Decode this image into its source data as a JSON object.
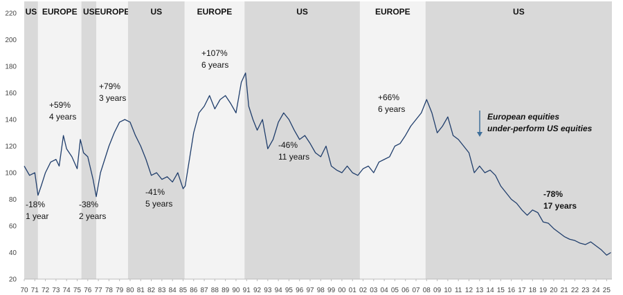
{
  "chart_data": {
    "type": "line",
    "x": [
      1970,
      1970.5,
      1971,
      1971.3,
      1971.6,
      1972,
      1972.5,
      1973,
      1973.3,
      1973.7,
      1974,
      1974.5,
      1975,
      1975.3,
      1975.6,
      1976,
      1976.5,
      1976.8,
      1977.2,
      1977.6,
      1978,
      1978.5,
      1979,
      1979.5,
      1980,
      1980.5,
      1981,
      1981.5,
      1982,
      1982.5,
      1983,
      1983.5,
      1984,
      1984.5,
      1985,
      1985.2,
      1985.6,
      1986,
      1986.5,
      1987,
      1987.5,
      1988,
      1988.5,
      1989,
      1989.5,
      1990,
      1990.5,
      1990.9,
      1991.2,
      1991.6,
      1992,
      1992.5,
      1993,
      1993.5,
      1994,
      1994.5,
      1995,
      1995.5,
      1996,
      1996.5,
      1997,
      1997.5,
      1998,
      1998.5,
      1999,
      1999.5,
      2000,
      2000.5,
      2001,
      2001.5,
      2002,
      2002.5,
      2003,
      2003.5,
      2004,
      2004.5,
      2005,
      2005.5,
      2006,
      2006.5,
      2007,
      2007.5,
      2008,
      2008.5,
      2009,
      2009.5,
      2010,
      2010.5,
      2011,
      2011.5,
      2012,
      2012.5,
      2013,
      2013.5,
      2014,
      2014.5,
      2015,
      2015.5,
      2016,
      2016.5,
      2017,
      2017.5,
      2018,
      2018.5,
      2019,
      2019.5,
      2020,
      2020.5,
      2021,
      2021.5,
      2022,
      2022.5,
      2023,
      2023.5,
      2024,
      2024.5,
      2025,
      2025.4
    ],
    "series": [
      {
        "color": "#1f3d6b",
        "values": [
          105,
          98,
          100,
          83,
          90,
          100,
          108,
          110,
          105,
          128,
          118,
          112,
          103,
          125,
          115,
          112,
          95,
          82,
          100,
          110,
          120,
          130,
          138,
          140,
          138,
          128,
          120,
          110,
          98,
          100,
          95,
          97,
          93,
          100,
          88,
          90,
          110,
          130,
          145,
          150,
          158,
          148,
          155,
          158,
          152,
          145,
          168,
          175,
          150,
          140,
          132,
          140,
          118,
          125,
          138,
          145,
          140,
          132,
          125,
          128,
          122,
          115,
          112,
          120,
          105,
          102,
          100,
          105,
          100,
          98,
          103,
          105,
          100,
          108,
          110,
          112,
          120,
          122,
          128,
          135,
          140,
          145,
          155,
          145,
          130,
          135,
          142,
          128,
          125,
          120,
          115,
          100,
          105,
          100,
          102,
          98,
          90,
          85,
          80,
          77,
          72,
          68,
          72,
          70,
          63,
          62,
          58,
          55,
          52,
          50,
          49,
          47,
          46,
          48,
          45,
          42,
          38,
          40
        ]
      }
    ],
    "xlim": [
      1970,
      2025.5
    ],
    "ylim": [
      20,
      220
    ],
    "yticks": [
      20,
      40,
      60,
      80,
      100,
      120,
      140,
      160,
      180,
      200,
      220
    ],
    "xticks": [
      {
        "value": 1970,
        "label": "70"
      },
      {
        "value": 1971,
        "label": "71"
      },
      {
        "value": 1972,
        "label": "72"
      },
      {
        "value": 1973,
        "label": "73"
      },
      {
        "value": 1974,
        "label": "74"
      },
      {
        "value": 1975,
        "label": "75"
      },
      {
        "value": 1976,
        "label": "76"
      },
      {
        "value": 1977,
        "label": "77"
      },
      {
        "value": 1978,
        "label": "78"
      },
      {
        "value": 1979,
        "label": "79"
      },
      {
        "value": 1980,
        "label": "80"
      },
      {
        "value": 1981,
        "label": "81"
      },
      {
        "value": 1982,
        "label": "82"
      },
      {
        "value": 1983,
        "label": "83"
      },
      {
        "value": 1984,
        "label": "84"
      },
      {
        "value": 1985,
        "label": "85"
      },
      {
        "value": 1986,
        "label": "86"
      },
      {
        "value": 1987,
        "label": "87"
      },
      {
        "value": 1988,
        "label": "88"
      },
      {
        "value": 1989,
        "label": "89"
      },
      {
        "value": 1990,
        "label": "90"
      },
      {
        "value": 1991,
        "label": "91"
      },
      {
        "value": 1992,
        "label": "92"
      },
      {
        "value": 1993,
        "label": "93"
      },
      {
        "value": 1994,
        "label": "94"
      },
      {
        "value": 1995,
        "label": "95"
      },
      {
        "value": 1996,
        "label": "96"
      },
      {
        "value": 1997,
        "label": "97"
      },
      {
        "value": 1998,
        "label": "98"
      },
      {
        "value": 1999,
        "label": "99"
      },
      {
        "value": 2000,
        "label": "00"
      },
      {
        "value": 2001,
        "label": "01"
      },
      {
        "value": 2002,
        "label": "02"
      },
      {
        "value": 2003,
        "label": "03"
      },
      {
        "value": 2004,
        "label": "04"
      },
      {
        "value": 2005,
        "label": "05"
      },
      {
        "value": 2006,
        "label": "06"
      },
      {
        "value": 2007,
        "label": "07"
      },
      {
        "value": 2008,
        "label": "08"
      },
      {
        "value": 2009,
        "label": "09"
      },
      {
        "value": 2010,
        "label": "10"
      },
      {
        "value": 2011,
        "label": "11"
      },
      {
        "value": 2012,
        "label": "12"
      },
      {
        "value": 2013,
        "label": "13"
      },
      {
        "value": 2014,
        "label": "14"
      },
      {
        "value": 2015,
        "label": "15"
      },
      {
        "value": 2016,
        "label": "16"
      },
      {
        "value": 2017,
        "label": "17"
      },
      {
        "value": 2018,
        "label": "18"
      },
      {
        "value": 2019,
        "label": "19"
      },
      {
        "value": 2020,
        "label": "20"
      },
      {
        "value": 2021,
        "label": "21"
      },
      {
        "value": 2022,
        "label": "22"
      },
      {
        "value": 2023,
        "label": "23"
      },
      {
        "value": 2024,
        "label": "24"
      },
      {
        "value": 2025,
        "label": "25"
      }
    ],
    "regions": [
      {
        "label": "US",
        "start": 1970,
        "end": 1971.3,
        "color": "#d9d9d9"
      },
      {
        "label": "EUROPE",
        "start": 1971.3,
        "end": 1975.4,
        "color": "#f3f3f3"
      },
      {
        "label": "US",
        "start": 1975.4,
        "end": 1976.8,
        "color": "#d9d9d9"
      },
      {
        "label": "EUROPE",
        "start": 1976.8,
        "end": 1979.8,
        "color": "#f3f3f3"
      },
      {
        "label": "US",
        "start": 1979.8,
        "end": 1985.15,
        "color": "#d9d9d9"
      },
      {
        "label": "EUROPE",
        "start": 1985.15,
        "end": 1990.8,
        "color": "#f3f3f3"
      },
      {
        "label": "US",
        "start": 1990.8,
        "end": 2001.7,
        "color": "#d9d9d9"
      },
      {
        "label": "EUROPE",
        "start": 2001.7,
        "end": 2007.9,
        "color": "#f3f3f3"
      },
      {
        "label": "US",
        "start": 2007.9,
        "end": 2025.5,
        "color": "#d9d9d9"
      }
    ],
    "annotations": [
      {
        "lines": [
          "-18%",
          "1 year"
        ]
      },
      {
        "lines": [
          "+59%",
          "4 years"
        ]
      },
      {
        "lines": [
          "-38%",
          "2 years"
        ]
      },
      {
        "lines": [
          "+79%",
          "3 years"
        ]
      },
      {
        "lines": [
          "-41%",
          "5 years"
        ]
      },
      {
        "lines": [
          "+107%",
          "6 years"
        ]
      },
      {
        "lines": [
          "-46%",
          "11 years"
        ]
      },
      {
        "lines": [
          "+66%",
          "6 years"
        ]
      },
      {
        "lines": [
          "-78%",
          "17 years"
        ],
        "bold": true
      },
      {
        "lines": [
          "European equities",
          "under-perform US equities"
        ],
        "bold": true,
        "italic": true
      }
    ]
  }
}
